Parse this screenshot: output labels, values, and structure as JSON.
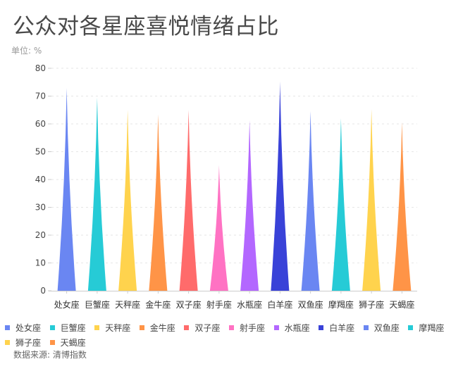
{
  "header": {
    "title": "公众对各星座喜悦情绪占比",
    "unit": "单位: %"
  },
  "footer": {
    "source": "数据来源: 清博指数"
  },
  "chart_data": {
    "type": "bar",
    "style": "pictorial-triangle",
    "title": "公众对各星座喜悦情绪占比",
    "subtitle": "单位: %",
    "xlabel": "",
    "ylabel": "%",
    "ylim": [
      0,
      80
    ],
    "yticks": [
      0,
      10,
      20,
      30,
      40,
      50,
      60,
      70,
      80
    ],
    "grid": true,
    "legend_position": "bottom",
    "categories": [
      "处女座",
      "巨蟹座",
      "天秤座",
      "金牛座",
      "双子座",
      "射手座",
      "水瓶座",
      "白羊座",
      "双鱼座",
      "摩羯座",
      "狮子座",
      "天蝎座"
    ],
    "values": [
      73,
      69.5,
      65,
      63.4,
      65,
      45.2,
      61.3,
      75.3,
      64.6,
      62,
      65.3,
      60.6
    ],
    "colors": [
      "#6A86F2",
      "#26CBD6",
      "#FFD34D",
      "#FF9447",
      "#FF6B6B",
      "#FF72C3",
      "#B367FF",
      "#3942D8",
      "#6A86F2",
      "#26CBD6",
      "#FFD34D",
      "#FF9447"
    ],
    "annotations": [
      "数据来源: 清博指数"
    ]
  }
}
